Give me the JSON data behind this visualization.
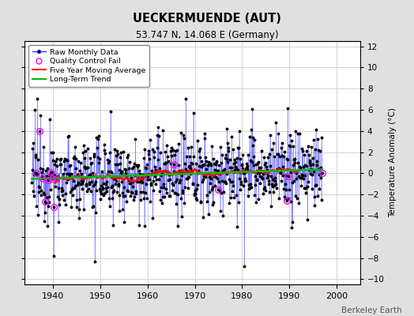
{
  "title": "UECKERMUENDE (AUT)",
  "subtitle": "53.747 N, 14.068 E (Germany)",
  "ylabel": "Temperature Anomaly (°C)",
  "attribution": "Berkeley Earth",
  "ylim": [
    -10.5,
    12.5
  ],
  "yticks": [
    -10,
    -8,
    -6,
    -4,
    -2,
    0,
    2,
    4,
    6,
    8,
    10,
    12
  ],
  "xlim": [
    1934,
    2005
  ],
  "xticks": [
    1940,
    1950,
    1960,
    1970,
    1980,
    1990,
    2000
  ],
  "bg_color": "#e0e0e0",
  "plot_bg_color": "#ffffff",
  "line_color": "#3333ff",
  "stem_color": "#6666ff",
  "marker_color": "#000000",
  "ma_color": "#ff0000",
  "trend_color": "#00bb00",
  "qc_color": "#ff00ff",
  "seed": 12345,
  "start_year": 1935.5,
  "end_year": 1997.0
}
